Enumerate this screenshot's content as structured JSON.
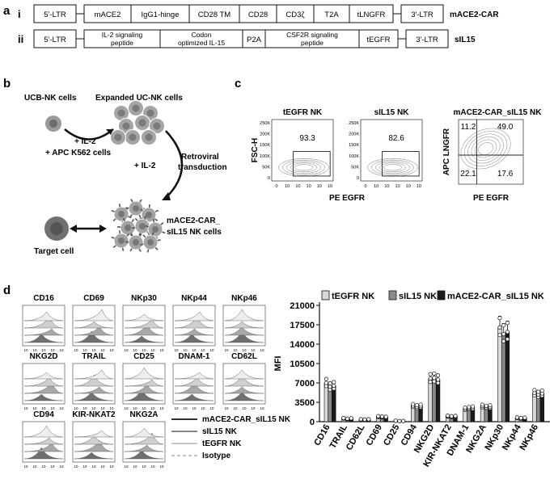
{
  "panel_labels": {
    "a": "a",
    "b": "b",
    "c": "c",
    "d": "d"
  },
  "constructs": [
    {
      "roman": "i",
      "name": "mACE2-CAR",
      "segments": [
        "5'-LTR",
        "mACE2",
        "IgG1-hinge",
        "CD28 TM",
        "CD28",
        "CD3ζ",
        "T2A",
        "tLNGFR",
        "3'-LTR"
      ]
    },
    {
      "roman": "ii",
      "name": "sIL15",
      "segments": [
        "5'-LTR",
        "IL-2 signaling\npeptide",
        "Codon\noptimized IL-15",
        "P2A",
        "CSF2R signaling\npeptide",
        "tEGFR",
        "3'-LTR"
      ]
    }
  ],
  "panel_b": {
    "ucb": "UCB-NK cells",
    "expanded": "Expanded UC-NK cells",
    "il2a": "+ IL-2",
    "apc": "+ APC K562 cells",
    "il2b": "+ IL-2",
    "retro1": "Retroviral",
    "retro2": "transduction",
    "car1": "mACE2-CAR_",
    "car2": "sIL15 NK cells",
    "target": "Target cell"
  },
  "panel_c": {
    "plots": [
      {
        "title": "tEGFR NK",
        "value": "93.3"
      },
      {
        "title": "sIL15 NK",
        "value": "82.6"
      }
    ],
    "ylabel": "FSC-H",
    "xlabel": "PE EGFR",
    "yticks": [
      "250K",
      "200K",
      "150K",
      "100K",
      "50K",
      "0"
    ],
    "quad": {
      "title": "mACE2-CAR_sIL15 NK",
      "ylabel": "APC LNGFR",
      "xlabel": "PE EGFR",
      "q": [
        "11.2",
        "49.0",
        "22.1",
        "17.6"
      ]
    },
    "xticks": [
      "0",
      "10",
      "10",
      "10",
      "10",
      "10"
    ],
    "xsup": [
      "",
      "2",
      "3",
      "4",
      "5"
    ]
  },
  "panel_d": {
    "histograms": [
      [
        "CD16",
        "CD69",
        "NKp30",
        "NKp44",
        "NKp46"
      ],
      [
        "NKG2D",
        "TRAIL",
        "CD25",
        "DNAM-1",
        "CD62L"
      ],
      [
        "CD94",
        "KIR-NKAT2",
        "NKG2A"
      ]
    ],
    "hist_legend": [
      "mACE2-CAR_sIL15 NK",
      "sIL15 NK",
      "tEGFR NK",
      "Isotype"
    ],
    "colors": {
      "tegfr": "#d8d8d8",
      "sil15": "#8a8a8a",
      "car": "#1a1a1a"
    }
  },
  "chart_data": {
    "type": "bar",
    "ylabel": "MFI",
    "ylim": [
      0,
      21000
    ],
    "yticks": [
      0,
      3500,
      7000,
      10500,
      14000,
      17500,
      21000
    ],
    "categories": [
      "CD16",
      "TRAIL",
      "CD62L",
      "CD69",
      "CD25",
      "CD94",
      "NKG2D",
      "KIR-NKAT2",
      "DNAM-1",
      "NKG2A",
      "NKp30",
      "NKp44",
      "NKp46"
    ],
    "series": [
      {
        "name": "tEGFR NK",
        "values": [
          7000,
          600,
          400,
          900,
          150,
          2900,
          7800,
          1000,
          2300,
          2800,
          17000,
          700,
          5200
        ]
      },
      {
        "name": "sIL15 NK",
        "values": [
          6300,
          500,
          350,
          850,
          100,
          2700,
          7900,
          900,
          2400,
          2600,
          15800,
          600,
          4900
        ]
      },
      {
        "name": "mACE2-CAR_sIL15 NK",
        "values": [
          6500,
          550,
          400,
          800,
          120,
          2800,
          7600,
          950,
          2500,
          2700,
          16200,
          650,
          5100
        ]
      }
    ],
    "legend": "top"
  }
}
